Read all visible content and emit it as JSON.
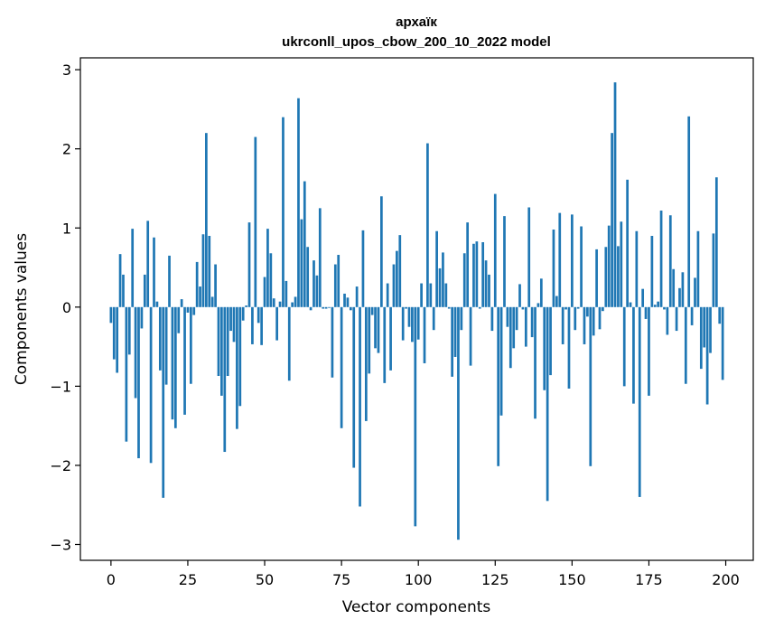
{
  "chart_data": {
    "type": "bar",
    "title_line1": "архаїк",
    "title_line2": "ukrconll_upos_cbow_200_10_2022 model",
    "xlabel": "Vector components",
    "ylabel": "Components values",
    "xlim": [
      -9.95,
      208.95
    ],
    "ylim": [
      -3.2,
      3.15
    ],
    "x_ticks": [
      0,
      25,
      50,
      75,
      100,
      125,
      150,
      175,
      200
    ],
    "x_tick_labels": [
      "0",
      "25",
      "50",
      "75",
      "100",
      "125",
      "150",
      "175",
      "200"
    ],
    "y_ticks": [
      -3,
      -2,
      -1,
      0,
      1,
      2,
      3
    ],
    "y_tick_labels": [
      "−3",
      "−2",
      "−1",
      "0",
      "1",
      "2",
      "3"
    ],
    "bar_color": "#1f77b4",
    "grid": false,
    "values": [
      -0.2,
      -0.66,
      -0.83,
      0.67,
      0.41,
      -1.7,
      -0.6,
      0.99,
      -1.15,
      -1.91,
      -0.27,
      0.41,
      1.09,
      -1.97,
      0.88,
      0.07,
      -0.8,
      -2.41,
      -0.98,
      0.65,
      -1.42,
      -1.53,
      -0.33,
      0.1,
      -1.36,
      -0.07,
      -0.97,
      -0.1,
      0.57,
      0.26,
      0.92,
      2.2,
      0.9,
      0.13,
      0.54,
      -0.87,
      -1.12,
      -1.83,
      -0.87,
      -0.3,
      -0.44,
      -1.54,
      -1.25,
      -0.17,
      0.02,
      1.07,
      -0.47,
      2.15,
      -0.2,
      -0.48,
      0.38,
      0.99,
      0.68,
      0.11,
      -0.42,
      0.07,
      2.4,
      0.33,
      -0.93,
      0.06,
      0.13,
      2.64,
      1.11,
      1.59,
      0.76,
      -0.04,
      0.59,
      0.4,
      1.25,
      -0.02,
      -0.02,
      -0.01,
      -0.89,
      0.54,
      0.66,
      -1.53,
      0.17,
      0.12,
      -0.04,
      -2.03,
      0.26,
      -2.52,
      0.97,
      -1.44,
      -0.84,
      -0.1,
      -0.52,
      -0.58,
      1.4,
      -0.96,
      0.3,
      -0.8,
      0.54,
      0.71,
      0.91,
      -0.42,
      -0.02,
      -0.25,
      -0.44,
      -2.77,
      -0.41,
      0.3,
      -0.71,
      2.07,
      0.3,
      -0.29,
      0.96,
      0.49,
      0.69,
      0.3,
      -0.02,
      -0.88,
      -0.63,
      -2.94,
      -0.29,
      0.68,
      1.07,
      -0.74,
      0.8,
      0.83,
      -0.02,
      0.82,
      0.59,
      0.41,
      -0.3,
      1.43,
      -2.01,
      -1.37,
      1.15,
      -0.25,
      -0.77,
      -0.52,
      -0.29,
      0.29,
      -0.03,
      -0.5,
      1.26,
      -0.38,
      -1.41,
      0.05,
      0.36,
      -1.05,
      -2.45,
      -0.86,
      0.98,
      0.14,
      1.19,
      -0.47,
      -0.03,
      -1.03,
      1.17,
      -0.29,
      -0.02,
      1.02,
      -0.47,
      -0.12,
      -2.01,
      -0.36,
      0.73,
      -0.28,
      -0.05,
      0.76,
      1.03,
      2.2,
      2.84,
      0.77,
      1.08,
      -1.0,
      1.61,
      0.06,
      -1.22,
      0.96,
      -2.4,
      0.23,
      -0.15,
      -1.12,
      0.9,
      0.03,
      0.07,
      1.22,
      -0.03,
      -0.35,
      1.16,
      0.48,
      -0.3,
      0.24,
      0.44,
      -0.97,
      2.41,
      -0.23,
      0.37,
      0.96,
      -0.78,
      -0.51,
      -1.23,
      -0.58,
      0.93,
      1.64,
      -0.21,
      -0.92
    ]
  }
}
